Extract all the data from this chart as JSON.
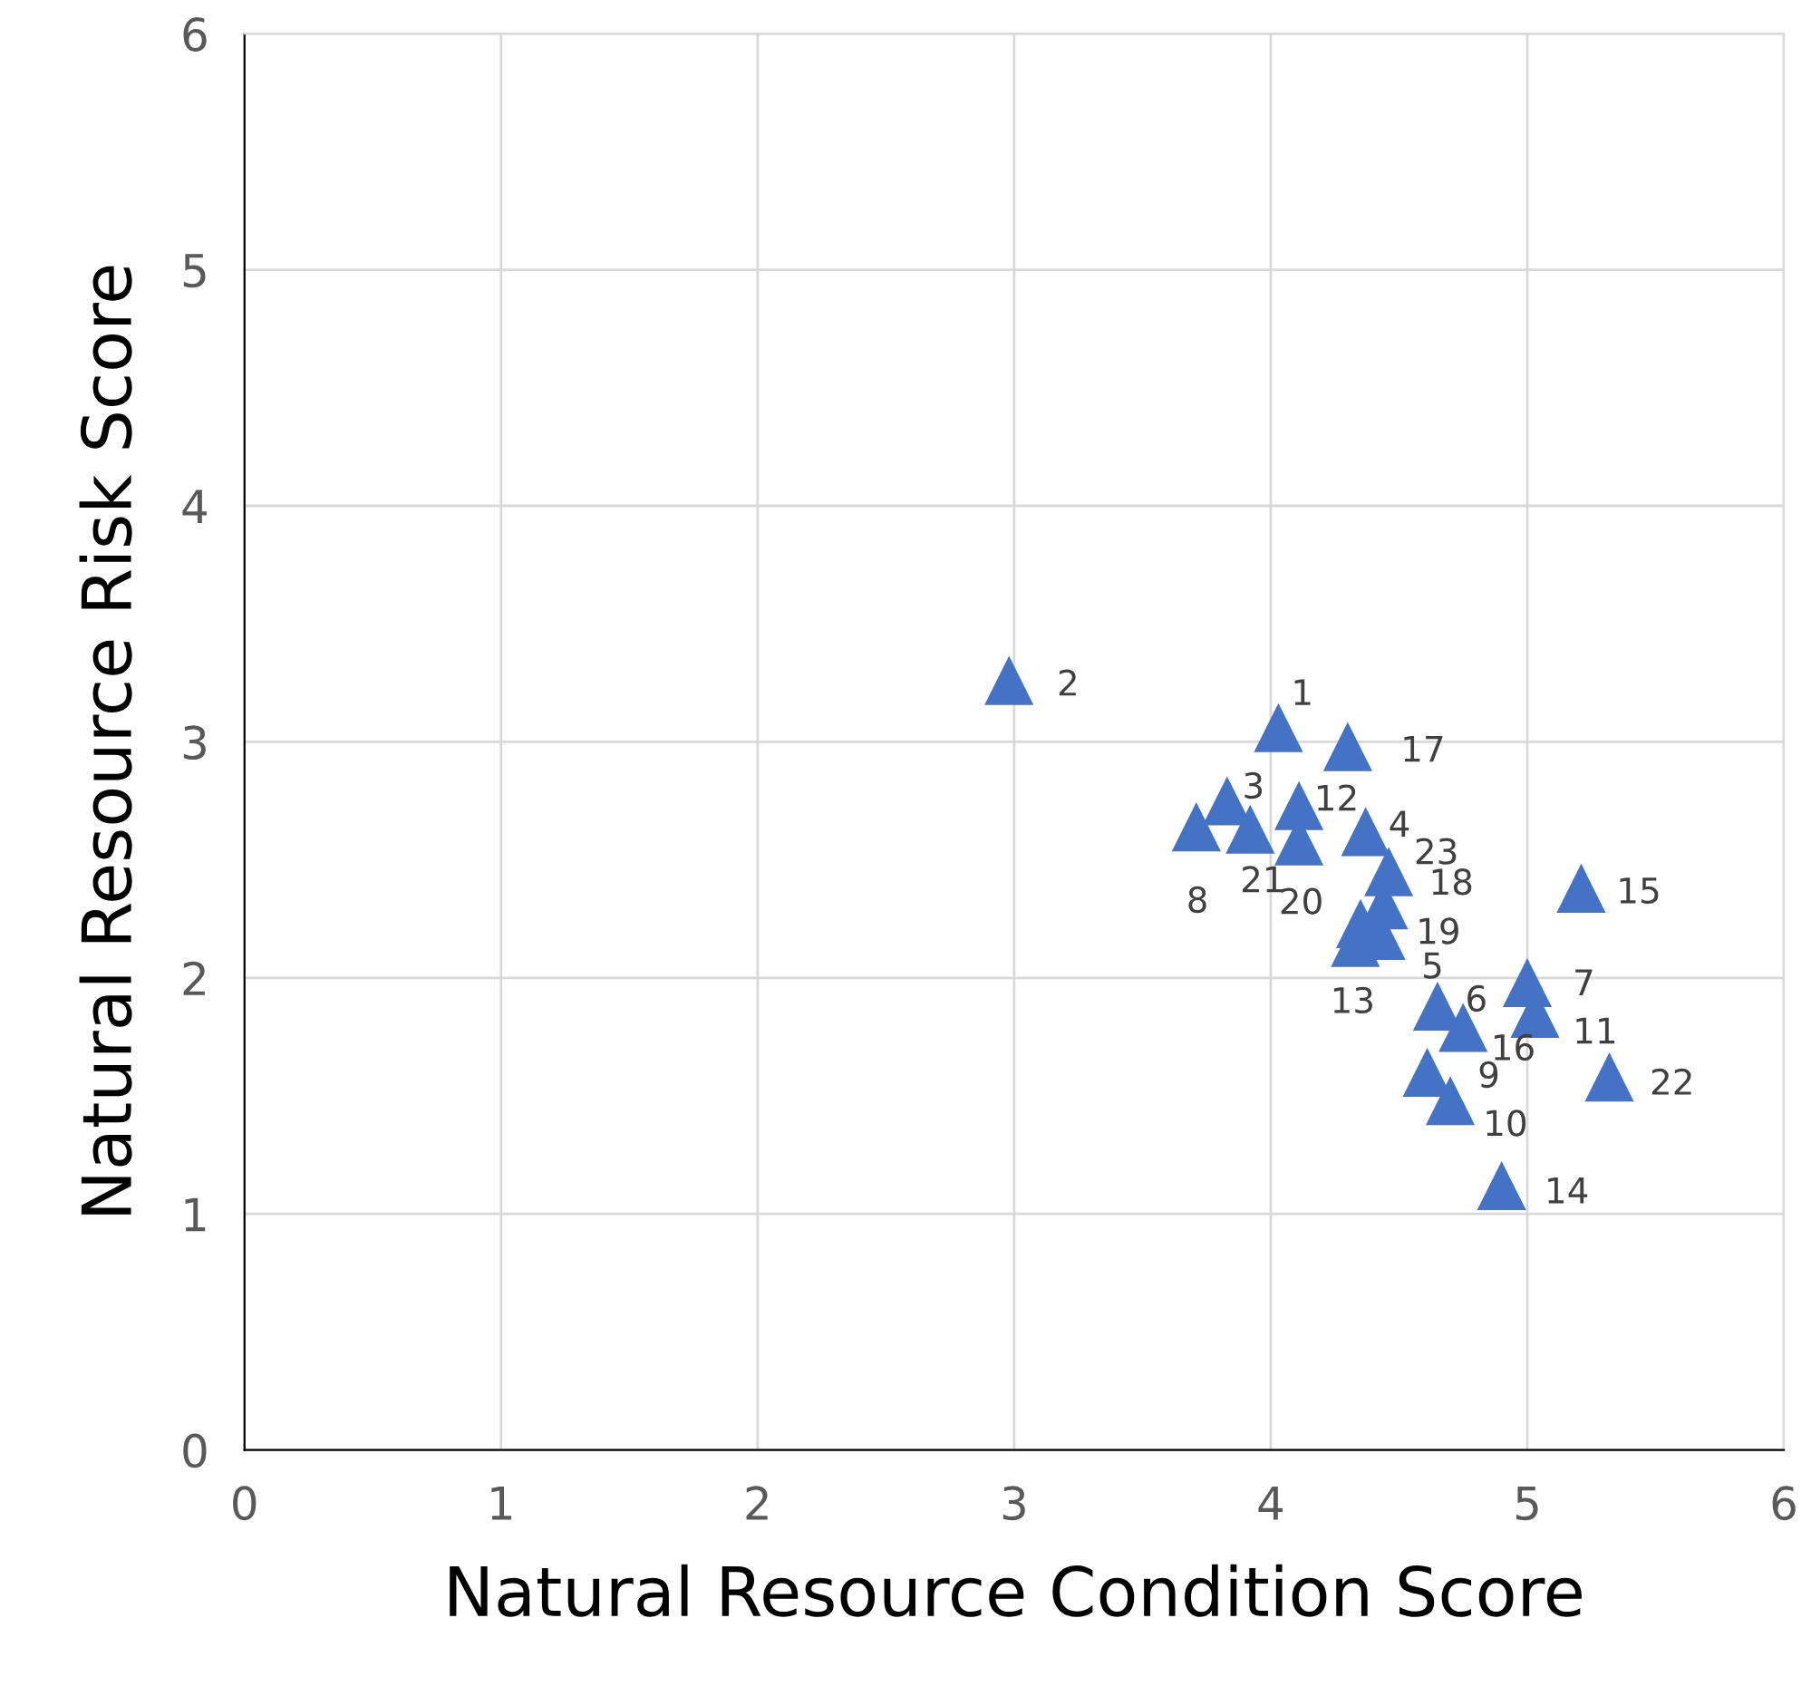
{
  "chart_data": {
    "type": "scatter",
    "xlabel": "Natural Resource Condition Score",
    "ylabel": "Natural Resource Risk Score",
    "xlim": [
      0,
      6
    ],
    "ylim": [
      0,
      6
    ],
    "xticks": [
      0,
      1,
      2,
      3,
      4,
      5,
      6
    ],
    "yticks": [
      0,
      1,
      2,
      3,
      4,
      5,
      6
    ],
    "grid": true,
    "marker": "triangle",
    "series": [
      {
        "color": "#4472c4",
        "x": [
          4.03,
          2.98,
          3.83,
          4.37,
          4.43,
          4.65,
          5.0,
          3.71,
          4.61,
          4.7,
          5.03,
          4.11,
          4.33,
          4.9,
          5.21,
          4.75,
          4.3,
          4.44,
          4.35,
          4.11,
          3.92,
          5.32,
          4.46
        ],
        "values": [
          3.06,
          3.26,
          2.75,
          2.62,
          2.18,
          1.88,
          1.98,
          2.64,
          1.6,
          1.48,
          1.85,
          2.73,
          2.15,
          1.12,
          2.38,
          1.79,
          2.98,
          2.31,
          2.23,
          2.58,
          2.63,
          1.58,
          2.45
        ]
      }
    ],
    "annotations": [
      {
        "text": "1",
        "x": 4.03,
        "y": 3.06
      },
      {
        "text": "2",
        "x": 2.98,
        "y": 3.26
      },
      {
        "text": "3",
        "x": 3.83,
        "y": 2.75
      },
      {
        "text": "4",
        "x": 4.37,
        "y": 2.62
      },
      {
        "text": "5",
        "x": 4.43,
        "y": 2.18
      },
      {
        "text": "6",
        "x": 4.65,
        "y": 1.88
      },
      {
        "text": "7",
        "x": 5.0,
        "y": 1.98
      },
      {
        "text": "8",
        "x": 3.71,
        "y": 2.64
      },
      {
        "text": "9",
        "x": 4.61,
        "y": 1.6
      },
      {
        "text": "10",
        "x": 4.7,
        "y": 1.48
      },
      {
        "text": "11",
        "x": 5.03,
        "y": 1.85
      },
      {
        "text": "12",
        "x": 4.11,
        "y": 2.73
      },
      {
        "text": "13",
        "x": 4.33,
        "y": 2.15
      },
      {
        "text": "14",
        "x": 4.9,
        "y": 1.12
      },
      {
        "text": "15",
        "x": 5.21,
        "y": 2.38
      },
      {
        "text": "16",
        "x": 4.75,
        "y": 1.79
      },
      {
        "text": "17",
        "x": 4.3,
        "y": 2.98
      },
      {
        "text": "18",
        "x": 4.44,
        "y": 2.31
      },
      {
        "text": "19",
        "x": 4.35,
        "y": 2.23
      },
      {
        "text": "20",
        "x": 4.11,
        "y": 2.58
      },
      {
        "text": "21",
        "x": 3.92,
        "y": 2.63
      },
      {
        "text": "22",
        "x": 5.32,
        "y": 1.58
      },
      {
        "text": "23",
        "x": 4.46,
        "y": 2.45
      }
    ]
  }
}
